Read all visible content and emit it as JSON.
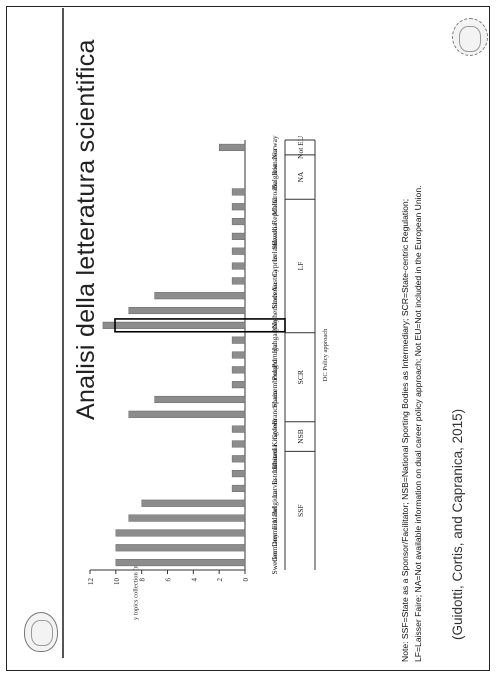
{
  "slide": {
    "title": "Analisi della letteratura scientifica",
    "note_line1": "Note: SSF=State as a Sponsor/Facilitator; NSB=National Sporting Bodies as Intermediary; SCR=State-centric Regulation;",
    "note_line2": "LF=Laisser Faire; NA=Not available information on dual career policy approach; Not EU=Not included in the European Union.",
    "citation": "(Guidotti, Cortis, and Capranica, 2015)"
  },
  "chart_data": {
    "type": "bar",
    "ylabel": "Country topics collection (n)",
    "xlabel": "DC Policy approach",
    "ylim": [
      0,
      12
    ],
    "yticks": [
      0,
      2,
      4,
      6,
      8,
      10,
      12
    ],
    "categories": [
      "Sweden",
      "Germany",
      "Denmark",
      "Finland",
      "Belgium",
      "Latvia",
      "Estonia",
      "Lithuania",
      "United Kingdom",
      "Greece",
      "France",
      "Spain",
      "Luxembourg",
      "Poland",
      "Portugal",
      "Hungary",
      "Italy",
      "Netherlands",
      "Slovenia",
      "Austria",
      "Cyprus",
      "Ireland",
      "Slovakia",
      "Czech Republic",
      "Malta",
      "Croatia",
      "Bulgaria",
      "Romania",
      "Norway"
    ],
    "values": [
      10,
      10,
      10,
      9,
      8,
      1,
      1,
      1,
      1,
      1,
      9,
      7,
      1,
      1,
      1,
      1,
      11,
      9,
      7,
      1,
      1,
      1,
      1,
      1,
      1,
      1,
      0,
      0,
      2
    ],
    "highlight": "Italy",
    "groups": [
      {
        "label": "SSF",
        "count": 8
      },
      {
        "label": "NSB",
        "count": 2
      },
      {
        "label": "SCR",
        "count": 6
      },
      {
        "label": "LF",
        "count": 9
      },
      {
        "label": "NA",
        "count": 3
      },
      {
        "label": "Not EU",
        "count": 1
      }
    ]
  }
}
